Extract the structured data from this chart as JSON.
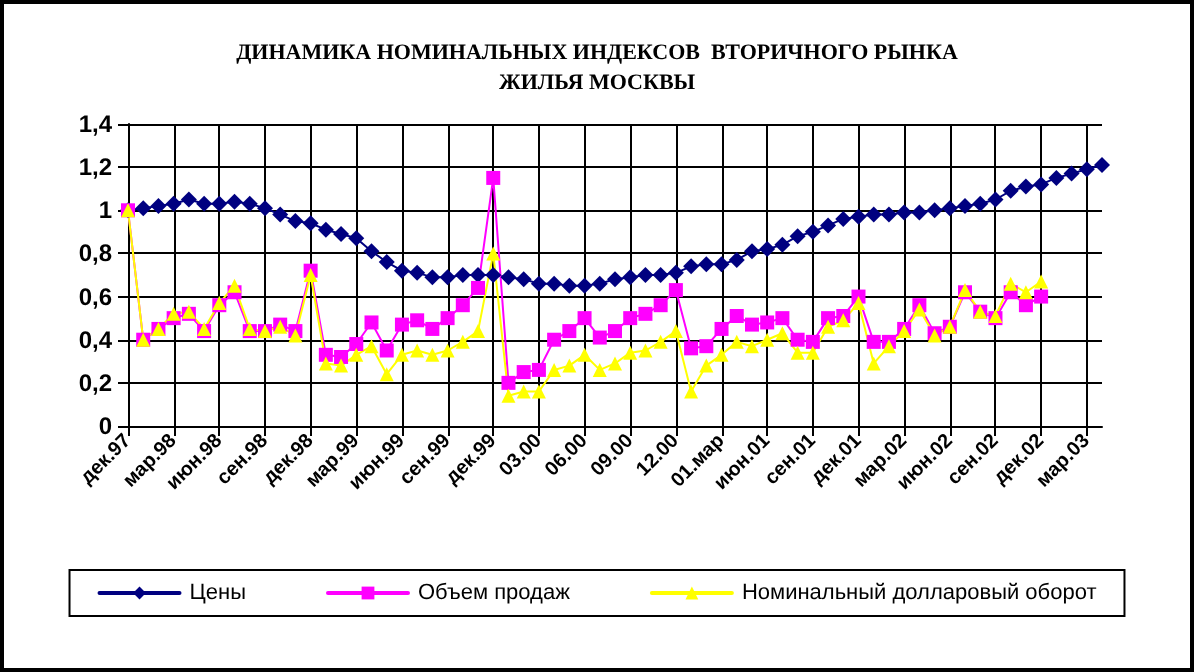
{
  "chart_data": {
    "type": "line",
    "title": "ДИНАМИКА НОМИНАЛЬНЫХ ИНДЕКСОВ  ВТОРИЧНОГО РЫНКА\nЖИЛЬЯ МОСКВЫ",
    "categories": [
      "дек.97",
      null,
      null,
      "мар.98",
      null,
      null,
      "июн.98",
      null,
      null,
      "сен.98",
      null,
      null,
      "дек.98",
      null,
      null,
      "мар.99",
      null,
      null,
      "июн.99",
      null,
      null,
      "сен.99",
      null,
      null,
      "дек.99",
      null,
      null,
      "03.00",
      null,
      null,
      "06.00",
      null,
      null,
      "09.00",
      null,
      null,
      "12.00",
      null,
      null,
      "01.мар",
      null,
      null,
      "июн.01",
      null,
      null,
      "сен.01",
      null,
      null,
      "дек.01",
      null,
      null,
      "мар.02",
      null,
      null,
      "июн.02",
      null,
      null,
      "сен.02",
      null,
      null,
      "дек.02",
      null,
      null,
      "мар.03",
      null
    ],
    "series": [
      {
        "name": "Цены",
        "color": "#000080",
        "marker": "diamond",
        "values": [
          1.0,
          1.01,
          1.02,
          1.03,
          1.05,
          1.03,
          1.03,
          1.04,
          1.03,
          1.01,
          0.98,
          0.95,
          0.94,
          0.91,
          0.89,
          0.87,
          0.81,
          0.76,
          0.72,
          0.71,
          0.69,
          0.69,
          0.7,
          0.7,
          0.7,
          0.69,
          0.68,
          0.66,
          0.66,
          0.65,
          0.65,
          0.66,
          0.68,
          0.69,
          0.7,
          0.7,
          0.71,
          0.74,
          0.75,
          0.75,
          0.77,
          0.81,
          0.82,
          0.84,
          0.88,
          0.9,
          0.93,
          0.96,
          0.97,
          0.98,
          0.98,
          0.99,
          0.99,
          1.0,
          1.01,
          1.02,
          1.03,
          1.05,
          1.09,
          1.11,
          1.12,
          1.15,
          1.17,
          1.19,
          1.21
        ]
      },
      {
        "name": "Объем продаж",
        "color": "#ff00ff",
        "marker": "square",
        "values": [
          1.0,
          0.4,
          0.45,
          0.5,
          0.52,
          0.44,
          0.56,
          0.62,
          0.44,
          0.44,
          0.47,
          0.44,
          0.72,
          0.33,
          0.32,
          0.38,
          0.48,
          0.35,
          0.47,
          0.49,
          0.45,
          0.5,
          0.56,
          0.64,
          1.15,
          0.2,
          0.25,
          0.26,
          0.4,
          0.44,
          0.5,
          0.41,
          0.44,
          0.5,
          0.52,
          0.56,
          0.63,
          0.36,
          0.37,
          0.45,
          0.51,
          0.47,
          0.48,
          0.5,
          0.4,
          0.39,
          0.5,
          0.51,
          0.6,
          0.39,
          0.39,
          0.45,
          0.56,
          0.43,
          0.46,
          0.62,
          0.53,
          0.5,
          0.62,
          0.56,
          0.6,
          null,
          null,
          null,
          null
        ]
      },
      {
        "name": "Номинальный долларовый оборот",
        "color": "#ffff00",
        "marker": "triangle",
        "values": [
          1.0,
          0.4,
          0.45,
          0.52,
          0.53,
          0.45,
          0.57,
          0.65,
          0.45,
          0.44,
          0.46,
          0.42,
          0.7,
          0.29,
          0.28,
          0.33,
          0.37,
          0.24,
          0.33,
          0.35,
          0.33,
          0.35,
          0.39,
          0.44,
          0.8,
          0.14,
          0.16,
          0.16,
          0.26,
          0.28,
          0.33,
          0.26,
          0.29,
          0.34,
          0.35,
          0.39,
          0.44,
          0.16,
          0.28,
          0.33,
          0.39,
          0.37,
          0.4,
          0.43,
          0.34,
          0.34,
          0.46,
          0.49,
          0.57,
          0.29,
          0.37,
          0.44,
          0.54,
          0.42,
          0.46,
          0.63,
          0.53,
          0.51,
          0.66,
          0.62,
          0.67,
          null,
          null,
          null,
          null
        ]
      }
    ],
    "ylim": [
      0,
      1.4
    ],
    "yticks": [
      {
        "value": 0,
        "label": "0"
      },
      {
        "value": 0.2,
        "label": "0,2"
      },
      {
        "value": 0.4,
        "label": "0,4"
      },
      {
        "value": 0.6,
        "label": "0,6"
      },
      {
        "value": 0.8,
        "label": "0,8"
      },
      {
        "value": 1,
        "label": "1"
      },
      {
        "value": 1.2,
        "label": "1,2"
      },
      {
        "value": 1.4,
        "label": "1,4"
      }
    ],
    "grid": true,
    "legend": "bottom",
    "line_style": "solid"
  }
}
